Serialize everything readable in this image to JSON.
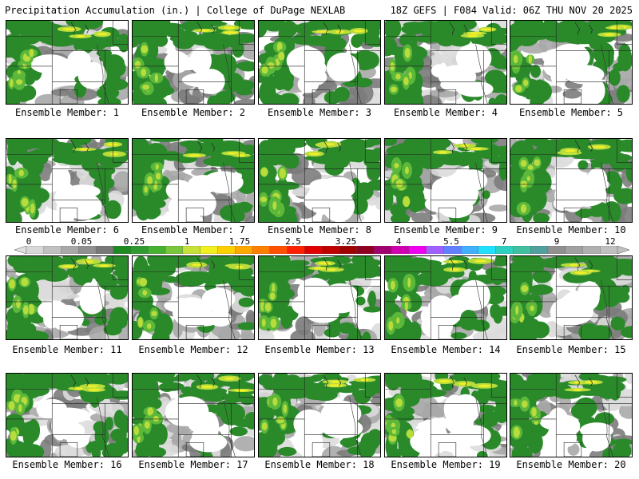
{
  "header": {
    "left_title": "Precipitation Accumulation (in.) | College of DuPage NEXLAB",
    "right_title": "18Z GEFS | F084 Valid: 06Z THU NOV 20 2025"
  },
  "members": [
    {
      "label": "Ensemble Member: 1"
    },
    {
      "label": "Ensemble Member: 2"
    },
    {
      "label": "Ensemble Member: 3"
    },
    {
      "label": "Ensemble Member: 4"
    },
    {
      "label": "Ensemble Member: 5"
    },
    {
      "label": "Ensemble Member: 6"
    },
    {
      "label": "Ensemble Member: 7"
    },
    {
      "label": "Ensemble Member: 8"
    },
    {
      "label": "Ensemble Member: 9"
    },
    {
      "label": "Ensemble Member: 10"
    },
    {
      "label": "Ensemble Member: 11"
    },
    {
      "label": "Ensemble Member: 12"
    },
    {
      "label": "Ensemble Member: 13"
    },
    {
      "label": "Ensemble Member: 14"
    },
    {
      "label": "Ensemble Member: 15"
    },
    {
      "label": "Ensemble Member: 16"
    },
    {
      "label": "Ensemble Member: 17"
    },
    {
      "label": "Ensemble Member: 18"
    },
    {
      "label": "Ensemble Member: 19"
    },
    {
      "label": "Ensemble Member: 20"
    }
  ],
  "colorbar": {
    "tick_labels": [
      "0",
      "0.05",
      "0.25",
      "1",
      "1.75",
      "2.5",
      "3.25",
      "4",
      "5.5",
      "7",
      "9",
      "12"
    ],
    "colors": [
      "#d8d8d8",
      "#c0c0c0",
      "#a8a8a8",
      "#909090",
      "#787878",
      "#1f8a1f",
      "#2f9a2f",
      "#46b030",
      "#7ac63a",
      "#c8e03a",
      "#f0f020",
      "#ffd000",
      "#ffa800",
      "#ff8000",
      "#ff5000",
      "#ff2000",
      "#e00000",
      "#c00000",
      "#a00000",
      "#900020",
      "#a00070",
      "#d000b0",
      "#f000f0",
      "#a060ff",
      "#6080ff",
      "#40b0ff",
      "#20e0ff",
      "#30d0c0",
      "#40c0a0",
      "#50a0a0",
      "#909090",
      "#a0a0a0",
      "#b0b0b0",
      "#c0c0c0"
    ]
  },
  "legend_colors": {
    "light_gray": "#dcdcdc",
    "mid_gray": "#a8a8a8",
    "dark_gray": "#7c7c7c",
    "green": "#2a8a2a",
    "bright_green": "#5cb83a",
    "yellow_green": "#b8dc3c",
    "yellow": "#f0f028"
  }
}
